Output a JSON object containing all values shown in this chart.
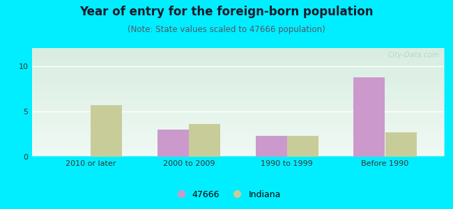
{
  "title": "Year of entry for the foreign-born population",
  "subtitle": "(Note: State values scaled to 47666 population)",
  "categories": [
    "2010 or later",
    "2000 to 2009",
    "1990 to 1999",
    "Before 1990"
  ],
  "values_47666": [
    0,
    3.0,
    2.3,
    8.8
  ],
  "values_indiana": [
    5.7,
    3.6,
    2.3,
    2.7
  ],
  "color_47666": "#cc99cc",
  "color_indiana": "#c8cc99",
  "background_outer": "#00eeff",
  "background_chart": "#e8f5ee",
  "ylim": [
    0,
    12
  ],
  "yticks": [
    0,
    5,
    10
  ],
  "bar_width": 0.32,
  "title_fontsize": 12,
  "subtitle_fontsize": 8.5,
  "tick_fontsize": 8,
  "legend_fontsize": 9,
  "watermark_text": "City-Data.com",
  "watermark_color": "#aacccc",
  "watermark_alpha": 0.75
}
